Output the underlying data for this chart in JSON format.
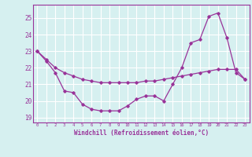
{
  "line1_x": [
    0,
    1,
    2,
    3,
    4,
    5,
    6,
    7,
    8,
    9,
    10,
    11,
    12,
    13,
    14,
    15,
    16,
    17,
    18,
    19,
    20,
    21,
    22,
    23
  ],
  "line1_y": [
    23.0,
    22.4,
    21.7,
    20.6,
    20.5,
    19.8,
    19.5,
    19.4,
    19.4,
    19.4,
    19.7,
    20.1,
    20.3,
    20.3,
    20.0,
    21.0,
    22.0,
    23.5,
    23.7,
    25.1,
    25.3,
    23.8,
    21.7,
    21.3
  ],
  "line2_x": [
    0,
    1,
    2,
    3,
    4,
    5,
    6,
    7,
    8,
    9,
    10,
    11,
    12,
    13,
    14,
    15,
    16,
    17,
    18,
    19,
    20,
    21,
    22,
    23
  ],
  "line2_y": [
    23.0,
    22.5,
    22.0,
    21.7,
    21.5,
    21.3,
    21.2,
    21.1,
    21.1,
    21.1,
    21.1,
    21.1,
    21.2,
    21.2,
    21.3,
    21.4,
    21.5,
    21.6,
    21.7,
    21.8,
    21.9,
    21.9,
    21.9,
    21.3
  ],
  "line_color": "#993399",
  "bg_color": "#d6f0f0",
  "grid_color": "#ffffff",
  "xlabel": "Windchill (Refroidissement éolien,°C)",
  "xlabel_color": "#993399",
  "ylabel_ticks": [
    19,
    20,
    21,
    22,
    23,
    24,
    25
  ],
  "ylim": [
    18.7,
    25.8
  ],
  "xlim": [
    -0.5,
    23.5
  ]
}
